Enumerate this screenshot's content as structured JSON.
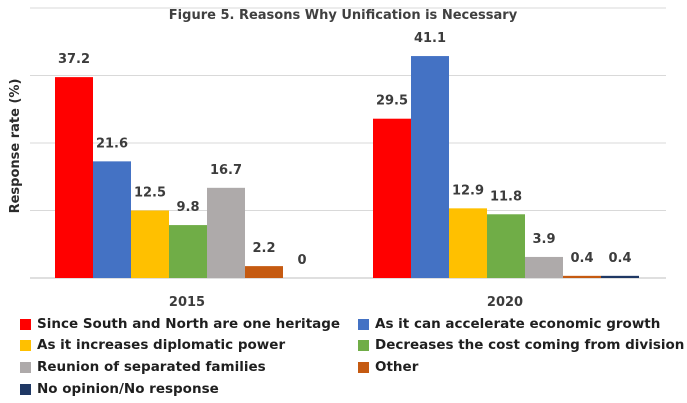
{
  "chart_data": {
    "type": "bar",
    "title": "Figure 5. Reasons Why Unification is Necessary",
    "ylabel": "Response rate (%)",
    "xlabel": "",
    "categories": [
      "2015",
      "2020"
    ],
    "ylim": [
      0,
      50
    ],
    "grid": true,
    "legend_position": "bottom",
    "series": [
      {
        "name": "Since South and North are one heritage",
        "color": "#ff0000",
        "values": [
          37.2,
          29.5
        ]
      },
      {
        "name": "As it can accelerate economic growth",
        "color": "#4472c4",
        "values": [
          21.6,
          41.1
        ]
      },
      {
        "name": "As it increases diplomatic power",
        "color": "#ffc000",
        "values": [
          12.5,
          12.9
        ]
      },
      {
        "name": "Decreases the cost coming from division",
        "color": "#70ad47",
        "values": [
          9.8,
          11.8
        ]
      },
      {
        "name": "Reunion of separated families",
        "color": "#aeaaaa",
        "values": [
          16.7,
          3.9
        ]
      },
      {
        "name": "Other",
        "color": "#c55a11",
        "values": [
          2.2,
          0.4
        ]
      },
      {
        "name": "No opinion/No response",
        "color": "#1f3864",
        "values": [
          0,
          0.4
        ]
      }
    ],
    "value_labels": [
      [
        "37.2",
        "29.5"
      ],
      [
        "21.6",
        "41.1"
      ],
      [
        "12.5",
        "12.9"
      ],
      [
        "9.8",
        "11.8"
      ],
      [
        "16.7",
        "3.9"
      ],
      [
        "2.2",
        "0.4"
      ],
      [
        "0",
        "0.4"
      ]
    ]
  }
}
